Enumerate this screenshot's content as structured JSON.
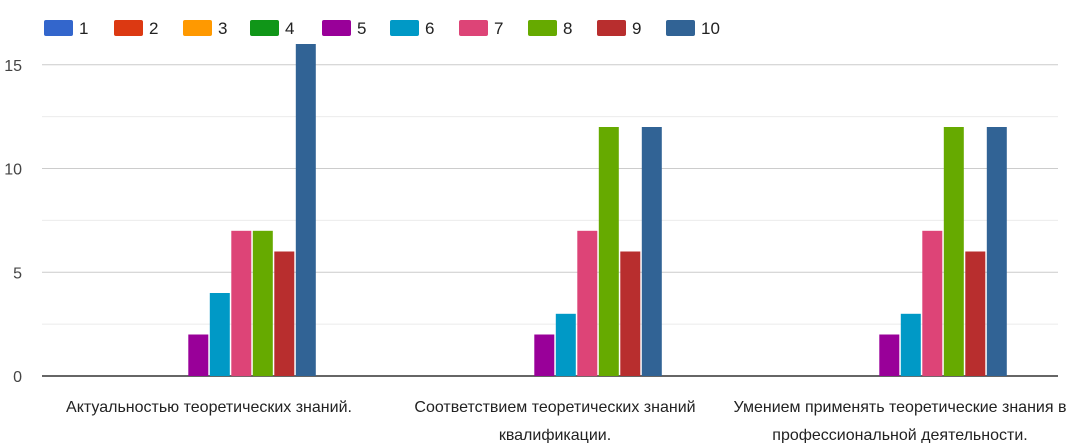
{
  "chart_data": {
    "type": "bar",
    "title": "",
    "xlabel": "",
    "ylabel": "",
    "ylim": [
      0,
      16.5
    ],
    "yticks": [
      0,
      5,
      10,
      15
    ],
    "grid": true,
    "legend_position": "top-left",
    "categories": [
      [
        "Актуальностью теоретических знаний."
      ],
      [
        "Соответствием теоретических знаний",
        "квалификации."
      ],
      [
        "Умением применять теоретические знания в",
        "профессиональной деятельности."
      ]
    ],
    "series": [
      {
        "name": "1",
        "color": "#3366cc",
        "values": [
          0,
          0,
          0
        ]
      },
      {
        "name": "2",
        "color": "#dc3912",
        "values": [
          0,
          0,
          0
        ]
      },
      {
        "name": "3",
        "color": "#ff9900",
        "values": [
          0,
          0,
          0
        ]
      },
      {
        "name": "4",
        "color": "#109618",
        "values": [
          0,
          0,
          0
        ]
      },
      {
        "name": "5",
        "color": "#990099",
        "values": [
          2,
          2,
          2
        ]
      },
      {
        "name": "6",
        "color": "#0099c6",
        "values": [
          4,
          3,
          3
        ]
      },
      {
        "name": "7",
        "color": "#dd4477",
        "values": [
          7,
          7,
          7
        ]
      },
      {
        "name": "8",
        "color": "#66aa00",
        "values": [
          7,
          12,
          12
        ]
      },
      {
        "name": "9",
        "color": "#b82e2e",
        "values": [
          6,
          6,
          6
        ]
      },
      {
        "name": "10",
        "color": "#316395",
        "values": [
          16,
          12,
          12
        ]
      }
    ]
  }
}
